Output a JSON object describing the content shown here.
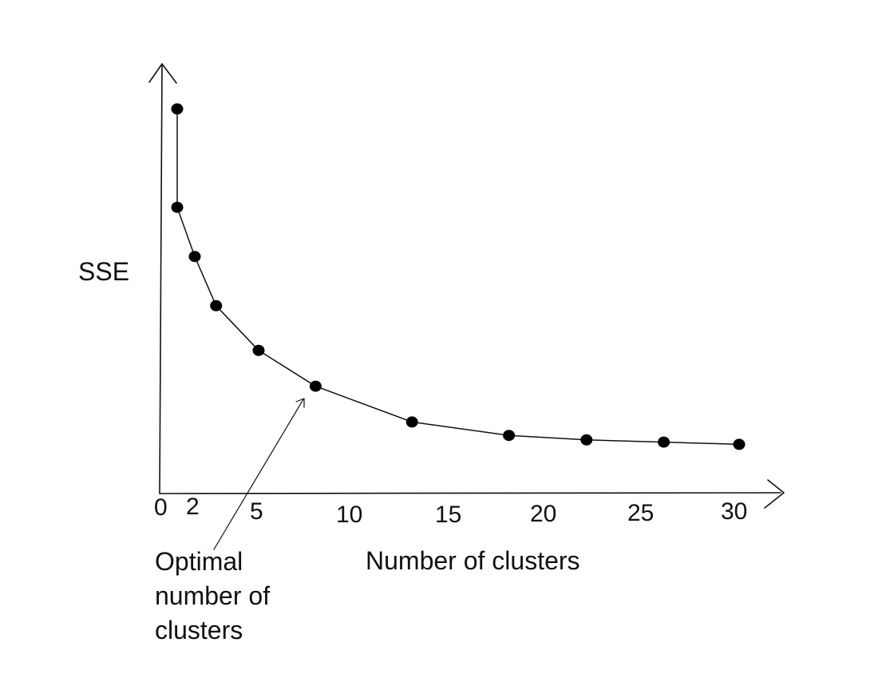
{
  "chart_data": {
    "type": "line",
    "title": "",
    "xlabel": "Number of clusters",
    "ylabel": "SSE",
    "x_ticks": [
      "0",
      "2",
      "5",
      "10",
      "15",
      "20",
      "25",
      "30"
    ],
    "xlim": [
      0,
      30
    ],
    "ylim": [
      0,
      100
    ],
    "grid": false,
    "legend": "none",
    "line_color": "#111111",
    "marker_color": "#000000",
    "series": [
      {
        "x": [
          1,
          1,
          2,
          3,
          5,
          8,
          13,
          18,
          22,
          26,
          30
        ],
        "y": [
          86,
          64,
          53,
          42,
          32,
          24,
          16,
          13,
          12,
          11.5,
          11
        ]
      }
    ],
    "annotation": {
      "lines": [
        "Optimal",
        "number of",
        "clusters"
      ],
      "points_to": {
        "x": 8,
        "y": 24
      }
    }
  }
}
